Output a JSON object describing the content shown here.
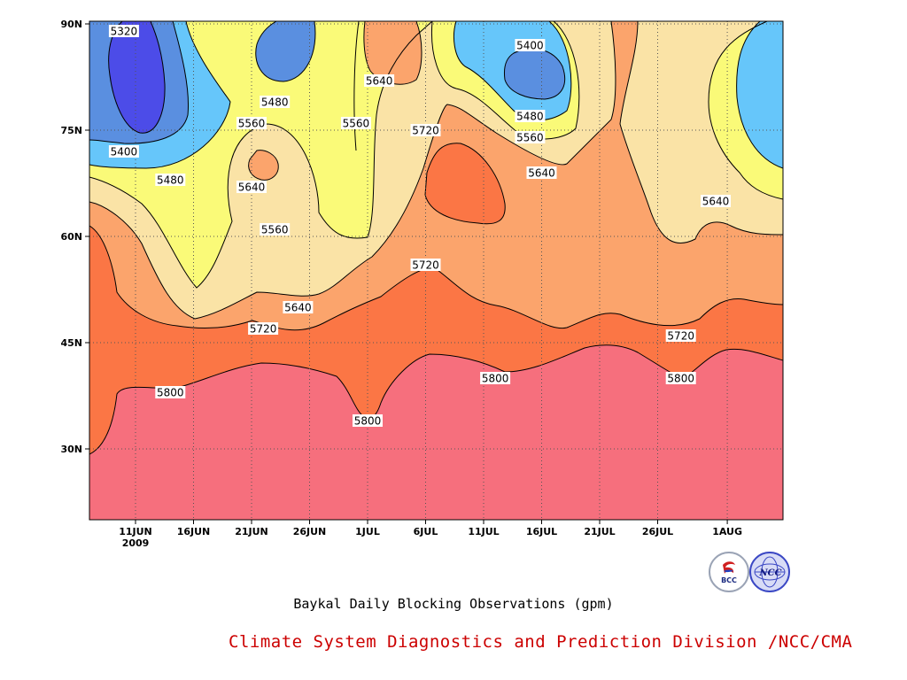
{
  "chart_data": {
    "type": "heatmap",
    "title": "Baykal Daily Blocking Observations (gpm)",
    "credit": "Climate System Diagnostics and Prediction Division /NCC/CMA",
    "x_ticks": [
      "11JUN",
      "16JUN",
      "21JUN",
      "26JUN",
      "1JUL",
      "6JUL",
      "11JUL",
      "16JUL",
      "21JUL",
      "26JUL",
      "1AUG"
    ],
    "x_year_label": "2009",
    "y_ticks": [
      "30N",
      "45N",
      "60N",
      "75N",
      "90N"
    ],
    "grid": "dotted",
    "contour_levels": [
      5320,
      5400,
      5480,
      5560,
      5640,
      5720,
      5800
    ],
    "fill_colors": {
      "below_5320": "#4c4ce8",
      "5320_5400": "#5a8fe0",
      "5400_5480": "#66c6fa",
      "5480_5560": "#fafa78",
      "5560_5640": "#fae3a6",
      "5640_5720": "#fba46c",
      "5720_5800": "#fb7645",
      "above_5800": "#f66f7d"
    },
    "contour_labels": [
      {
        "text": "5320",
        "date": "10JUN",
        "lat": "89N"
      },
      {
        "text": "5400",
        "date": "10JUN",
        "lat": "72N"
      },
      {
        "text": "5480",
        "date": "14JUN",
        "lat": "68N"
      },
      {
        "text": "5480",
        "date": "23JUN",
        "lat": "79N"
      },
      {
        "text": "5560",
        "date": "21JUN",
        "lat": "76N"
      },
      {
        "text": "5640",
        "date": "21JUN",
        "lat": "67N"
      },
      {
        "text": "5560",
        "date": "23JUN",
        "lat": "61N"
      },
      {
        "text": "5640",
        "date": "25JUN",
        "lat": "50N"
      },
      {
        "text": "5720",
        "date": "22JUN",
        "lat": "47N"
      },
      {
        "text": "5800",
        "date": "14JUN",
        "lat": "38N"
      },
      {
        "text": "5560",
        "date": "30JUN",
        "lat": "76N"
      },
      {
        "text": "5640",
        "date": "2JUL",
        "lat": "82N"
      },
      {
        "text": "5720",
        "date": "6JUL",
        "lat": "75N"
      },
      {
        "text": "5720",
        "date": "6JUL",
        "lat": "56N"
      },
      {
        "text": "5400",
        "date": "15JUL",
        "lat": "87N"
      },
      {
        "text": "5480",
        "date": "15JUL",
        "lat": "77N"
      },
      {
        "text": "5560",
        "date": "15JUL",
        "lat": "74N"
      },
      {
        "text": "5640",
        "date": "16JUL",
        "lat": "69N"
      },
      {
        "text": "5800",
        "date": "1JUL",
        "lat": "34N"
      },
      {
        "text": "5800",
        "date": "12JUL",
        "lat": "40N"
      },
      {
        "text": "5720",
        "date": "28JUL",
        "lat": "46N"
      },
      {
        "text": "5800",
        "date": "28JUL",
        "lat": "40N"
      },
      {
        "text": "5640",
        "date": "31JUL",
        "lat": "65N"
      }
    ]
  }
}
